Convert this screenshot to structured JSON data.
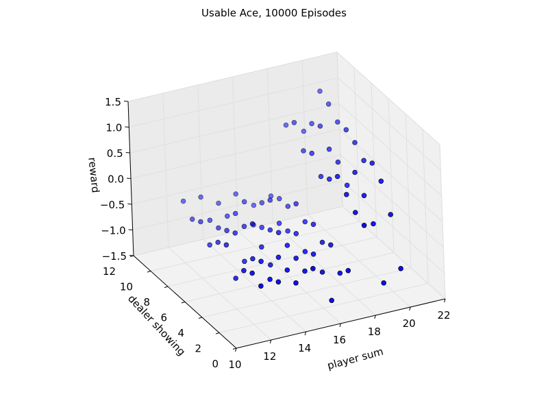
{
  "chart_data": {
    "type": "scatter",
    "projection": "3d",
    "title": "Usable Ace, 10000 Episodes",
    "xlabel": "player sum",
    "ylabel": "dealer showing",
    "zlabel": "reward",
    "xlim": [
      10,
      22
    ],
    "ylim": [
      0,
      12
    ],
    "zlim": [
      -1.5,
      1.5
    ],
    "xticks": [
      "10",
      "12",
      "14",
      "16",
      "18",
      "20",
      "22"
    ],
    "yticks": [
      "0",
      "2",
      "4",
      "6",
      "8",
      "10",
      "12"
    ],
    "zticks": [
      "−1.5",
      "−1.0",
      "−0.5",
      "0.0",
      "0.5",
      "1.0",
      "1.5"
    ],
    "grid": true,
    "marker_color": "#0000ff",
    "marker_edge_color": "#000000",
    "pane_color": "#f2f2f2",
    "points": [
      [
        12,
        1,
        -0.6
      ],
      [
        12,
        2,
        -0.5
      ],
      [
        12,
        3,
        -0.6
      ],
      [
        12,
        4,
        -0.9
      ],
      [
        12,
        5,
        -0.4
      ],
      [
        12,
        6,
        -0.5
      ],
      [
        12,
        7,
        -0.7
      ],
      [
        12,
        8,
        -0.4
      ],
      [
        12,
        9,
        -0.5
      ],
      [
        12,
        10,
        -0.3
      ],
      [
        13,
        1,
        -0.6
      ],
      [
        13,
        2,
        -0.7
      ],
      [
        13,
        3,
        -0.5
      ],
      [
        13,
        4,
        -0.6
      ],
      [
        13,
        5,
        -0.8
      ],
      [
        13,
        6,
        -0.4
      ],
      [
        13,
        7,
        -0.5
      ],
      [
        13,
        8,
        -0.6
      ],
      [
        13,
        9,
        -0.6
      ],
      [
        13,
        10,
        -0.3
      ],
      [
        14,
        1,
        -0.7
      ],
      [
        14,
        2,
        -0.6
      ],
      [
        14,
        3,
        -0.5
      ],
      [
        14,
        4,
        -0.8
      ],
      [
        14,
        5,
        -0.6
      ],
      [
        14,
        6,
        -0.3
      ],
      [
        14,
        7,
        -0.5
      ],
      [
        14,
        8,
        -0.4
      ],
      [
        14,
        9,
        -0.6
      ],
      [
        14,
        10,
        -0.5
      ],
      [
        15,
        1,
        -0.5
      ],
      [
        15,
        2,
        -0.7
      ],
      [
        15,
        3,
        -0.6
      ],
      [
        15,
        4,
        -0.5
      ],
      [
        15,
        5,
        -0.4
      ],
      [
        15,
        6,
        -0.5
      ],
      [
        15,
        7,
        -0.6
      ],
      [
        15,
        8,
        -0.7
      ],
      [
        15,
        9,
        -0.4
      ],
      [
        15,
        10,
        -0.4
      ],
      [
        16,
        1,
        -1.2
      ],
      [
        16,
        2,
        -0.8
      ],
      [
        16,
        3,
        -0.6
      ],
      [
        16,
        4,
        -0.7
      ],
      [
        16,
        5,
        -0.5
      ],
      [
        16,
        6,
        -0.6
      ],
      [
        16,
        7,
        -0.6
      ],
      [
        16,
        8,
        -0.3
      ],
      [
        16,
        9,
        -0.5
      ],
      [
        16,
        10,
        -0.7
      ],
      [
        17,
        1,
        -0.7
      ],
      [
        17,
        2,
        -0.9
      ],
      [
        17,
        3,
        -0.5
      ],
      [
        17,
        4,
        -0.6
      ],
      [
        17,
        5,
        -0.4
      ],
      [
        17,
        6,
        -0.5
      ],
      [
        17,
        7,
        -0.3
      ],
      [
        17,
        8,
        -0.5
      ],
      [
        17,
        9,
        -0.5
      ],
      [
        17,
        10,
        -0.6
      ],
      [
        18,
        1,
        0.1
      ],
      [
        18,
        2,
        0.2
      ],
      [
        18,
        3,
        0.4
      ],
      [
        18,
        4,
        0.6
      ],
      [
        18,
        5,
        0.4
      ],
      [
        18,
        6,
        0.3
      ],
      [
        18,
        7,
        0.6
      ],
      [
        18,
        8,
        0.5
      ],
      [
        18,
        9,
        0.9
      ],
      [
        18,
        10,
        0.7
      ],
      [
        19,
        1,
        -1.1
      ],
      [
        19,
        2,
        -0.1
      ],
      [
        19,
        3,
        0.3
      ],
      [
        19,
        4,
        0.6
      ],
      [
        19,
        5,
        0.2
      ],
      [
        19,
        6,
        0.5
      ],
      [
        19,
        7,
        0.6
      ],
      [
        19,
        8,
        0.9
      ],
      [
        19,
        9,
        0.8
      ],
      [
        19,
        10,
        0.5
      ],
      [
        20,
        1,
        -0.9
      ],
      [
        20,
        2,
        0.0
      ],
      [
        20,
        3,
        0.5
      ],
      [
        20,
        4,
        0.7
      ],
      [
        20,
        5,
        0.6
      ],
      [
        20,
        6,
        0.8
      ],
      [
        20,
        7,
        0.9
      ],
      [
        20,
        8,
        0.9
      ],
      [
        20,
        9,
        1.1
      ],
      [
        20,
        10,
        1.2
      ]
    ]
  }
}
